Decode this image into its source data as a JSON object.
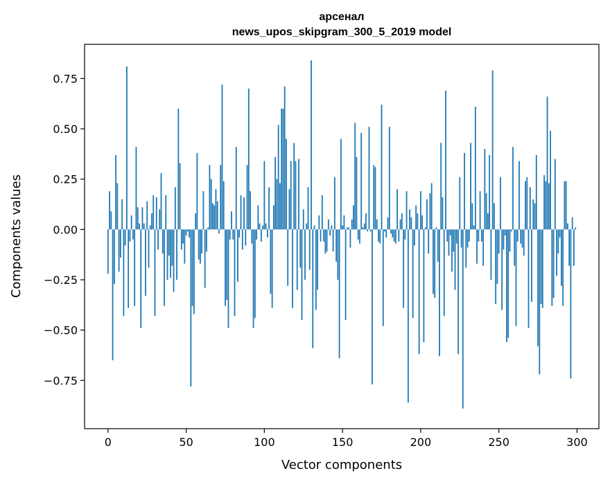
{
  "chart_data": {
    "type": "bar",
    "title_lines": [
      "арсенал",
      "news_upos_skipgram_300_5_2019 model"
    ],
    "xlabel": "Vector components",
    "ylabel": "Components values",
    "xlim": [
      -15,
      314
    ],
    "ylim": [
      -0.99,
      0.92
    ],
    "x_ticks": [
      0,
      50,
      100,
      150,
      200,
      250,
      300
    ],
    "x_tick_labels": [
      "0",
      "50",
      "100",
      "150",
      "200",
      "250",
      "300"
    ],
    "y_ticks": [
      -0.75,
      -0.5,
      -0.25,
      0.0,
      0.25,
      0.5,
      0.75
    ],
    "y_tick_labels": [
      "−0.75",
      "−0.50",
      "−0.25",
      "0.00",
      "0.25",
      "0.50",
      "0.75"
    ],
    "grid": false,
    "legend": "none",
    "bar_color": "#1f77b4",
    "values": [
      -0.22,
      0.19,
      0.09,
      -0.65,
      -0.27,
      0.37,
      0.23,
      -0.21,
      -0.14,
      0.15,
      -0.43,
      -0.08,
      0.81,
      -0.39,
      -0.06,
      0.07,
      -0.05,
      -0.38,
      0.41,
      0.11,
      0.03,
      -0.49,
      0.11,
      0.03,
      -0.33,
      0.14,
      -0.19,
      0.02,
      0.08,
      0.17,
      -0.43,
      0.16,
      -0.1,
      0.1,
      0.28,
      -0.12,
      -0.38,
      0.17,
      -0.25,
      -0.13,
      -0.24,
      -0.18,
      -0.31,
      0.21,
      -0.25,
      0.6,
      0.33,
      -0.1,
      -0.07,
      -0.17,
      -0.03,
      -0.01,
      -0.04,
      -0.78,
      -0.38,
      -0.42,
      0.08,
      0.38,
      -0.15,
      -0.17,
      -0.12,
      0.19,
      -0.29,
      -0.11,
      0.01,
      0.32,
      0.25,
      0.13,
      0.12,
      0.2,
      0.14,
      -0.02,
      0.32,
      0.72,
      0.24,
      -0.38,
      -0.35,
      -0.49,
      -0.05,
      0.09,
      -0.05,
      -0.43,
      0.41,
      -0.26,
      -0.04,
      0.17,
      -0.1,
      0.16,
      -0.08,
      0.32,
      0.7,
      0.19,
      -0.07,
      -0.49,
      -0.44,
      -0.05,
      0.12,
      0.03,
      -0.06,
      0.02,
      0.34,
      0.03,
      -0.04,
      0.21,
      -0.32,
      -0.39,
      0.12,
      0.36,
      0.25,
      0.52,
      0.23,
      0.6,
      0.6,
      0.71,
      0.45,
      -0.28,
      0.2,
      0.34,
      -0.39,
      0.43,
      0.34,
      -0.3,
      0.35,
      -0.19,
      -0.45,
      0.1,
      -0.25,
      0.03,
      0.21,
      -0.2,
      0.84,
      -0.59,
      0.02,
      -0.4,
      -0.3,
      0.07,
      -0.06,
      0.17,
      -0.06,
      -0.12,
      -0.11,
      0.05,
      -0.03,
      0.02,
      -0.11,
      0.26,
      -0.16,
      -0.25,
      -0.64,
      0.45,
      0.02,
      0.07,
      -0.45,
      0.01,
      0.01,
      -0.09,
      0.05,
      0.12,
      0.53,
      0.36,
      -0.05,
      -0.07,
      0.48,
      0.01,
      0.03,
      0.08,
      -0.01,
      0.51,
      -0.01,
      -0.77,
      0.32,
      0.31,
      0.05,
      -0.06,
      -0.07,
      0.62,
      -0.48,
      -0.01,
      -0.04,
      0.06,
      0.51,
      -0.02,
      -0.04,
      -0.06,
      -0.07,
      0.2,
      -0.06,
      0.05,
      0.08,
      -0.39,
      -0.05,
      0.19,
      -0.86,
      0.1,
      0.06,
      -0.44,
      -0.08,
      0.12,
      0.08,
      -0.62,
      0.19,
      0.07,
      -0.56,
      0.01,
      0.15,
      -0.12,
      0.18,
      0.23,
      -0.32,
      -0.34,
      0.01,
      -0.16,
      -0.63,
      0.43,
      0.16,
      -0.43,
      0.69,
      -0.06,
      -0.13,
      -0.03,
      -0.21,
      -0.11,
      -0.3,
      -0.07,
      -0.62,
      0.26,
      -0.09,
      -0.89,
      0.38,
      -0.19,
      -0.09,
      -0.06,
      0.43,
      0.13,
      0.02,
      0.61,
      -0.17,
      -0.06,
      0.19,
      -0.06,
      -0.18,
      0.4,
      0.18,
      0.08,
      0.37,
      -0.25,
      0.79,
      0.13,
      -0.37,
      -0.27,
      -0.12,
      0.26,
      -0.4,
      -0.1,
      -0.03,
      -0.56,
      -0.54,
      -0.11,
      -0.01,
      0.41,
      -0.18,
      -0.48,
      -0.06,
      0.34,
      -0.07,
      -0.09,
      -0.13,
      0.24,
      0.26,
      -0.49,
      0.21,
      -0.36,
      0.15,
      0.13,
      0.37,
      -0.58,
      -0.72,
      -0.37,
      -0.39,
      0.27,
      0.24,
      0.66,
      0.23,
      0.49,
      -0.38,
      -0.34,
      0.35,
      -0.23,
      -0.12,
      -0.04,
      -0.28,
      -0.38,
      0.24,
      0.24,
      0.03,
      -0.18,
      -0.74,
      0.06,
      -0.18,
      0.01
    ]
  }
}
